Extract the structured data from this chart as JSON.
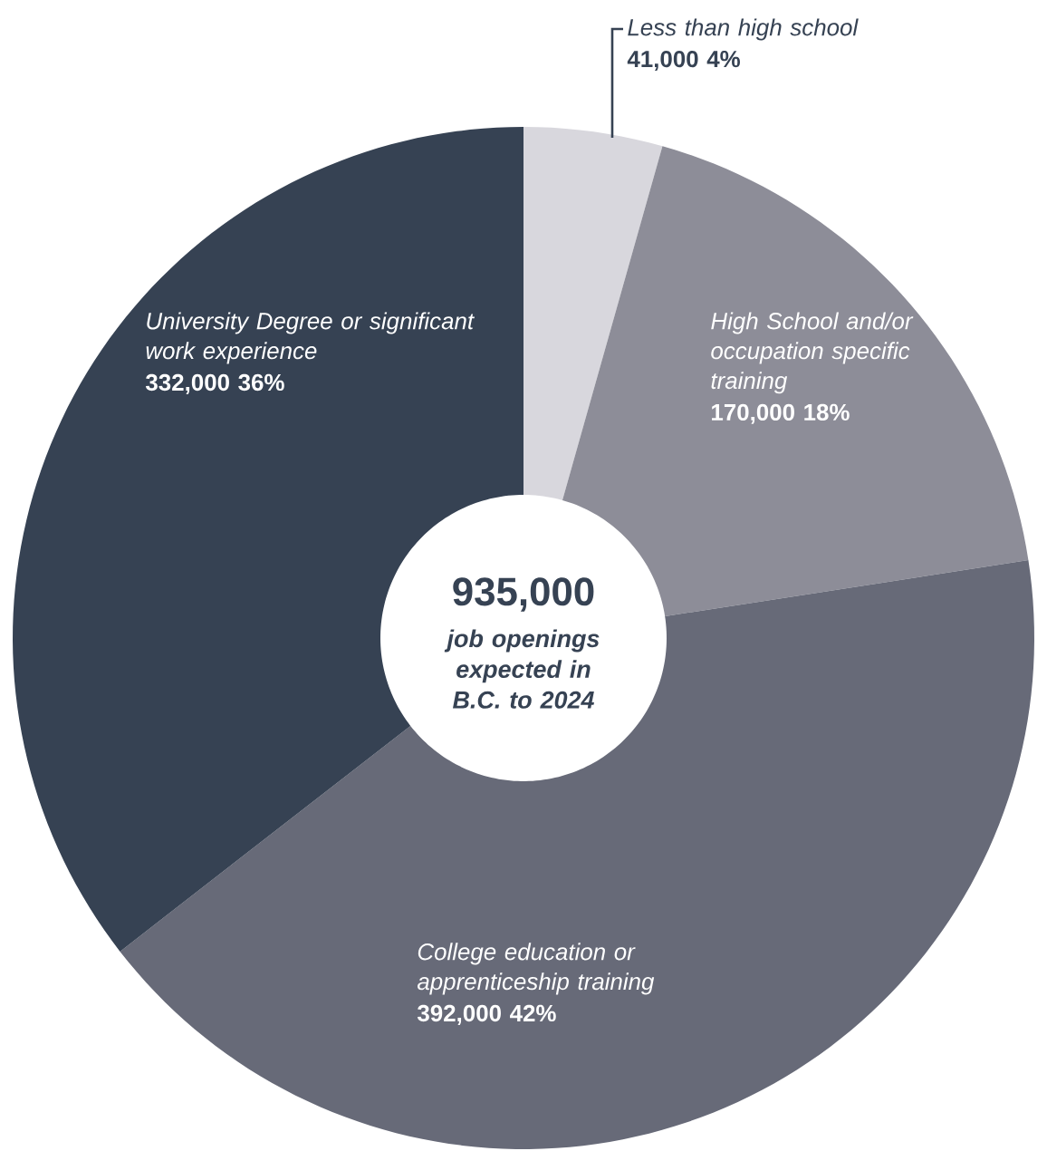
{
  "chart_data": {
    "type": "donut",
    "categories": [
      "Less than high school",
      "High School and/or occupation specific training",
      "College education or apprenticeship training",
      "University Degree or significant work experience"
    ],
    "values": [
      41000,
      170000,
      392000,
      332000
    ],
    "value_labels": [
      "41,000  4%",
      "170,000  18%",
      "392,000  42%",
      "332,000  36%"
    ],
    "colors": [
      "#d8d7dd",
      "#8d8d98",
      "#676a78",
      "#364253"
    ],
    "annotations": [
      "935,000",
      "job openings expected in B.C. to 2024"
    ]
  }
}
